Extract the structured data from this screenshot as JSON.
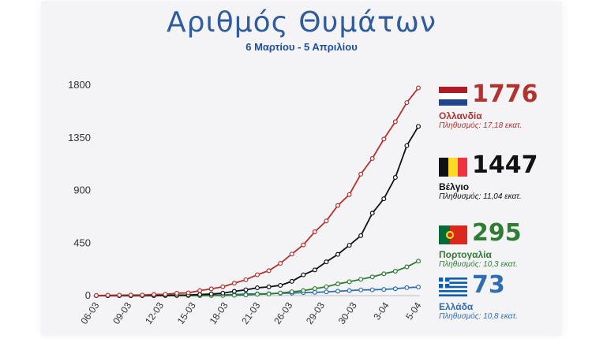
{
  "header": {
    "title": "Αριθμός Θυμάτων",
    "subtitle": "6 Μαρτίου - 5 Απριλίου"
  },
  "legend": [
    {
      "value": "1776",
      "country": "Ολλανδία",
      "population": "Πληθυσμός: 17,18 εκατ.",
      "color": "#b3322f",
      "flag": "netherlands-flag-icon"
    },
    {
      "value": "1447",
      "country": "Βέλγιο",
      "population": "Πληθυσμός: 11,04 εκατ.",
      "color": "#111111",
      "flag": "belgium-flag-icon"
    },
    {
      "value": "295",
      "country": "Πορτογαλία",
      "population": "Πληθυσμός: 10,3 εκατ.",
      "color": "#2e7d32",
      "flag": "portugal-flag-icon"
    },
    {
      "value": "73",
      "country": "Ελλάδα",
      "population": "Πληθυσμός: 10,8 εκατ.",
      "color": "#2f6db3",
      "flag": "greece-flag-icon"
    }
  ],
  "chart_data": {
    "type": "line",
    "title": "Αριθμός Θυμάτων",
    "subtitle": "6 Μαρτίου - 5 Απριλίου",
    "xlabel": "",
    "ylabel": "",
    "ylim": [
      0,
      1800
    ],
    "yticks": [
      0,
      450,
      900,
      1350,
      1800
    ],
    "x_tick_labels": [
      "06-03",
      "09-03",
      "12-03",
      "15-03",
      "18-03",
      "21-03",
      "26-03",
      "29-03",
      "30-03",
      "3-04",
      "5-04"
    ],
    "grid": false,
    "legend_position": "right",
    "series": [
      {
        "name": "Ολλανδία",
        "color": "#b3322f",
        "values": [
          1,
          3,
          4,
          5,
          5,
          10,
          12,
          20,
          24,
          43,
          58,
          76,
          106,
          136,
          179,
          213,
          276,
          356,
          434,
          546,
          639,
          771,
          864,
          1039,
          1173,
          1339,
          1487,
          1651,
          1776
        ]
      },
      {
        "name": "Βέλγιο",
        "color": "#111111",
        "values": [
          0,
          0,
          0,
          0,
          1,
          2,
          3,
          4,
          5,
          10,
          14,
          21,
          37,
          50,
          67,
          75,
          88,
          122,
          178,
          220,
          289,
          353,
          431,
          513,
          705,
          828,
          1011,
          1283,
          1447
        ]
      },
      {
        "name": "Πορτογαλία",
        "color": "#2e7d32",
        "values": [
          0,
          0,
          0,
          0,
          0,
          0,
          0,
          0,
          0,
          0,
          1,
          2,
          3,
          6,
          12,
          14,
          23,
          33,
          43,
          60,
          76,
          100,
          119,
          140,
          160,
          187,
          209,
          246,
          295
        ]
      },
      {
        "name": "Ελλάδα",
        "color": "#2f6db3",
        "values": [
          0,
          0,
          0,
          0,
          0,
          1,
          1,
          1,
          3,
          4,
          5,
          6,
          10,
          13,
          15,
          17,
          20,
          22,
          26,
          28,
          32,
          38,
          43,
          49,
          50,
          53,
          59,
          68,
          73
        ]
      }
    ]
  }
}
